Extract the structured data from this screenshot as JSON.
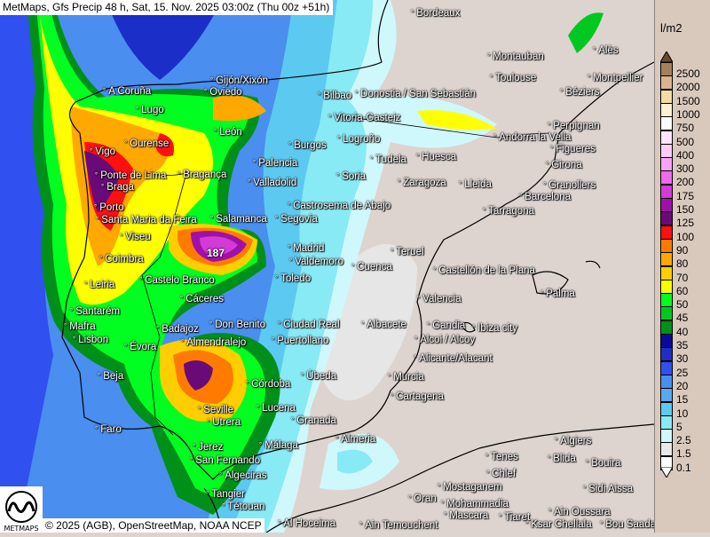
{
  "header": {
    "title": "MetMaps, Gfs Precip 48 h, Sat, 15. Nov. 2025 03:00z (Thu 00z +51h)"
  },
  "footer": {
    "credit": "© 2025 (AGB), OpenStreetMap, NOAA NCEP",
    "logo_text": "METMAPS"
  },
  "legend": {
    "unit": "l/m2",
    "top_arrow_color": "#6b4a2e",
    "bottom_arrow_color": "#ffffff",
    "levels": [
      {
        "label": "2500",
        "color": "#a4805e"
      },
      {
        "label": "2000",
        "color": "#dcb48c"
      },
      {
        "label": "1500",
        "color": "#f2dca0"
      },
      {
        "label": "1000",
        "color": "#fbf0d2"
      },
      {
        "label": "750",
        "color": "#fcfcff"
      },
      {
        "label": "500",
        "color": "#fde6fd"
      },
      {
        "label": "400",
        "color": "#fccbfc"
      },
      {
        "label": "300",
        "color": "#f9a2f9"
      },
      {
        "label": "200",
        "color": "#ee6aee"
      },
      {
        "label": "175",
        "color": "#d43ad8"
      },
      {
        "label": "150",
        "color": "#a010a8"
      },
      {
        "label": "125",
        "color": "#6a0a78"
      },
      {
        "label": "100",
        "color": "#ff1010"
      },
      {
        "label": "90",
        "color": "#ff7a00"
      },
      {
        "label": "80",
        "color": "#ffa800"
      },
      {
        "label": "70",
        "color": "#ffce00"
      },
      {
        "label": "60",
        "color": "#ffff00"
      },
      {
        "label": "50",
        "color": "#00ff20"
      },
      {
        "label": "45",
        "color": "#00c820"
      },
      {
        "label": "40",
        "color": "#00901a"
      },
      {
        "label": "35",
        "color": "#0a0a9a"
      },
      {
        "label": "30",
        "color": "#1c2ec8"
      },
      {
        "label": "25",
        "color": "#3050f0"
      },
      {
        "label": "20",
        "color": "#4a8ef0"
      },
      {
        "label": "15",
        "color": "#58aaf0"
      },
      {
        "label": "10",
        "color": "#5ccaf0"
      },
      {
        "label": "5",
        "color": "#88eaf4"
      },
      {
        "label": "2.5",
        "color": "#cff8fc"
      },
      {
        "label": "1.5",
        "color": "#e8e8e8"
      },
      {
        "label": "0.1",
        "color": "#ffffff"
      }
    ]
  },
  "map": {
    "max_value": "187",
    "cities": [
      "Bordeaux",
      "Montauban",
      "Alès",
      "Toulouse",
      "Montpellier",
      "Gijón/Xixón",
      "A Coruña",
      "Oviedo",
      "Bilbao",
      "Donostia / San Sebastián",
      "Béziers",
      "Lugo",
      "Vitoria-Gasteiz",
      "Perpignan",
      "León",
      "Andorra la Vella",
      "Burgos",
      "Logroño",
      "Ourense",
      "Figueres",
      "Vigo",
      "Tudela",
      "Huesca",
      "Palencia",
      "Girona",
      "Ponte de Lima",
      "Bragança",
      "Braga",
      "Valladolid",
      "Soria",
      "Zaragoza",
      "Lleida",
      "Granollers",
      "Barcelona",
      "Castrosema de Abajo",
      "Porto",
      "Tarragona",
      "Salamanca",
      "Segovia",
      "Santa Maria da Feira",
      "Viseu",
      "Madrid",
      "Teruel",
      "Valdemoro",
      "Coimbra",
      "Cuenca",
      "Castellón de la Plana",
      "Castelo Branco",
      "Toledo",
      "Leiria",
      "Palma",
      "Cáceres",
      "Valencia",
      "Santarém",
      "Badajoz",
      "Don Benito",
      "Ciudad Real",
      "Albacete",
      "Gandia",
      "Ibiza city",
      "Mafra",
      "Lisbon",
      "Almendralejo",
      "Puertollano",
      "Alcoi / Alcoy",
      "Évora",
      "Alicante/Alacant",
      "Beja",
      "Úbeda",
      "Murcia",
      "Córdoba",
      "Cartagena",
      "Lucena",
      "Seville",
      "Utrera",
      "Granada",
      "Faro",
      "Almeria",
      "Algiers",
      "Jerez",
      "Málaga",
      "San Fernando",
      "Tenes",
      "Blida",
      "Bouira",
      "Algeciras",
      "Chlef",
      "Mostaganem",
      "Sidi Aissa",
      "Tangier",
      "Tétouan",
      "Oran",
      "Mohammadia",
      "Mascara",
      "Tiaret",
      "Ain Oussara",
      "Al Hoceima",
      "Ain Temouchent",
      "Ksar Chellala",
      "Bou Saada"
    ]
  }
}
